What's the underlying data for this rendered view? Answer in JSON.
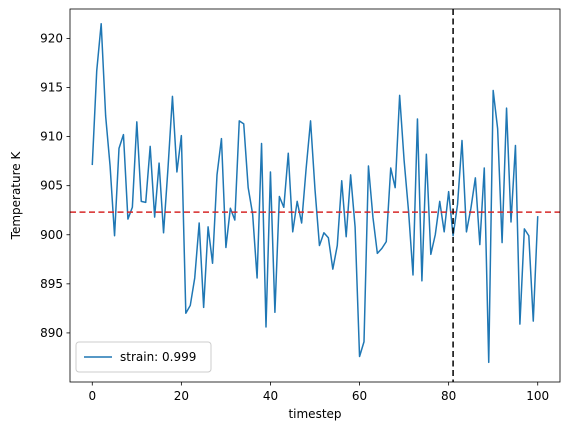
{
  "chart_data": {
    "type": "line",
    "title": "",
    "xlabel": "timestep",
    "ylabel": "Temperature K",
    "xlim": [
      -5,
      105
    ],
    "ylim": [
      885.0,
      923.0
    ],
    "xticks": [
      0,
      20,
      40,
      60,
      80,
      100
    ],
    "yticks": [
      890,
      895,
      900,
      905,
      910,
      915,
      920
    ],
    "grid": false,
    "legend_position": "lower-left",
    "series": [
      {
        "name": "strain: 0.999",
        "color": "#1f77b4",
        "x": [
          0,
          1,
          2,
          3,
          4,
          5,
          6,
          7,
          8,
          9,
          10,
          11,
          12,
          13,
          14,
          15,
          16,
          17,
          18,
          19,
          20,
          21,
          22,
          23,
          24,
          25,
          26,
          27,
          28,
          29,
          30,
          31,
          32,
          33,
          34,
          35,
          36,
          37,
          38,
          39,
          40,
          41,
          42,
          43,
          44,
          45,
          46,
          47,
          48,
          49,
          50,
          51,
          52,
          53,
          54,
          55,
          56,
          57,
          58,
          59,
          60,
          61,
          62,
          63,
          64,
          65,
          66,
          67,
          68,
          69,
          70,
          71,
          72,
          73,
          74,
          75,
          76,
          77,
          78,
          79,
          80,
          81,
          82,
          83,
          84,
          85,
          86,
          87,
          88,
          89,
          90,
          91,
          92,
          93,
          94,
          95,
          96,
          97,
          98,
          99,
          100
        ],
        "y": [
          907.1,
          916.7,
          921.5,
          912.1,
          907.0,
          899.9,
          908.8,
          910.2,
          901.6,
          902.8,
          911.5,
          903.4,
          903.3,
          909.0,
          901.8,
          907.3,
          900.2,
          906.8,
          914.1,
          906.4,
          910.1,
          892.0,
          892.8,
          895.6,
          901.2,
          892.6,
          900.8,
          897.1,
          906.1,
          909.8,
          898.7,
          902.7,
          901.5,
          911.6,
          911.3,
          904.8,
          902.1,
          895.6,
          909.3,
          890.6,
          906.4,
          892.1,
          903.9,
          902.8,
          908.3,
          900.3,
          903.4,
          901.2,
          906.7,
          911.6,
          904.6,
          898.9,
          900.2,
          899.7,
          896.5,
          898.9,
          905.5,
          899.8,
          906.1,
          900.8,
          887.6,
          889.1,
          907.0,
          901.8,
          898.1,
          898.6,
          899.3,
          906.8,
          904.8,
          914.2,
          907.6,
          902.4,
          895.9,
          911.8,
          895.3,
          908.2,
          898.0,
          900.0,
          903.4,
          900.3,
          904.4,
          899.9,
          903.1,
          909.6,
          900.3,
          902.7,
          905.8,
          899.0,
          906.8,
          887.0,
          914.7,
          910.8,
          899.2,
          912.9,
          901.3,
          909.1,
          890.9,
          900.6,
          899.9,
          891.2,
          901.9
        ]
      }
    ],
    "hlines": [
      {
        "y": 902.3,
        "color": "#d62728",
        "style": "dashed"
      }
    ],
    "vlines": [
      {
        "x": 81,
        "color": "#000000",
        "style": "dashed"
      }
    ]
  }
}
